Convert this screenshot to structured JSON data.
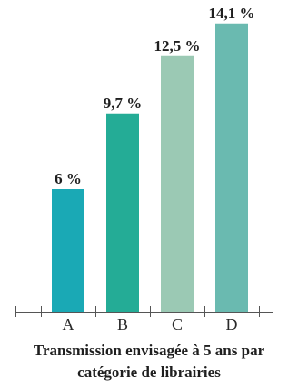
{
  "chart_data": {
    "type": "bar",
    "categories": [
      "A",
      "B",
      "C",
      "D"
    ],
    "values": [
      6,
      9.7,
      12.5,
      14.1
    ],
    "value_labels": [
      "6 %",
      "9,7 %",
      "12,5 %",
      "14,1 %"
    ],
    "colors": [
      "#1aa9b5",
      "#24ac96",
      "#9bc9b4",
      "#6abab0"
    ],
    "title_lines": [
      "Transmission envisagée à 5 ans par",
      "catégorie de librairies"
    ],
    "xlabel": "",
    "ylabel": "",
    "ylim": [
      0,
      16
    ],
    "grid": false,
    "legend": "none"
  }
}
